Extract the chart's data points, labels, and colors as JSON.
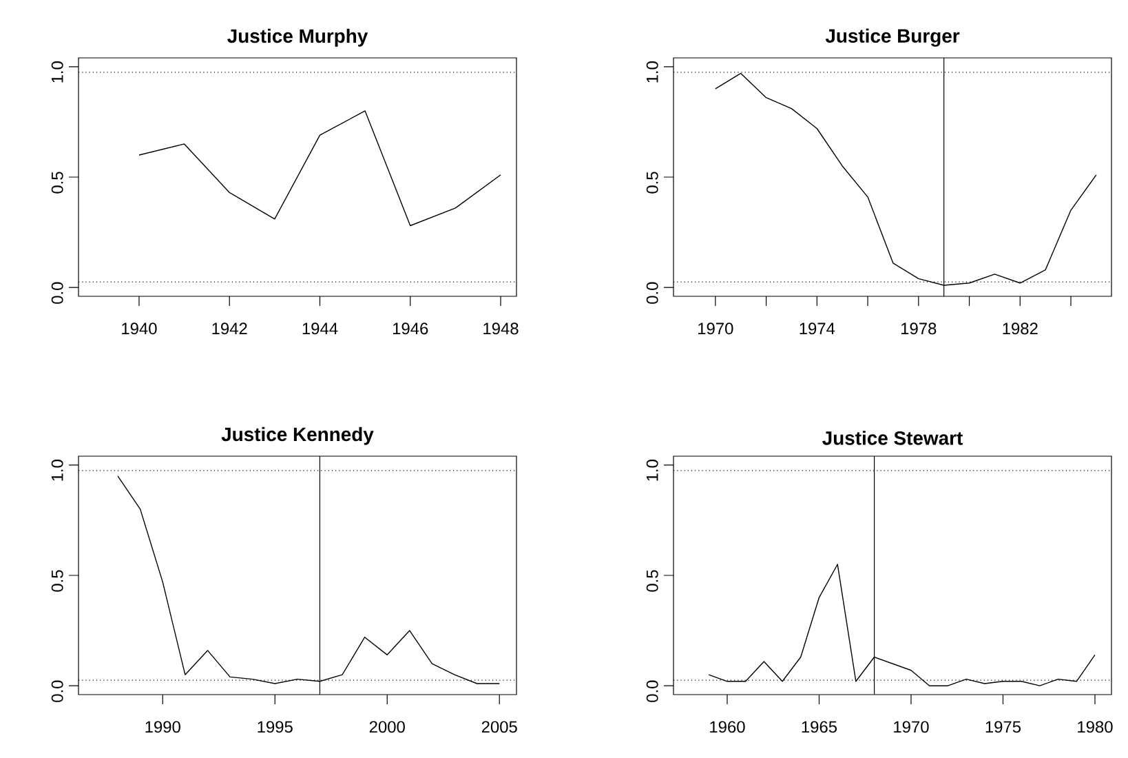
{
  "chart_data": [
    {
      "type": "line",
      "title": "Justice Murphy",
      "color": "#000000",
      "x": [
        1940,
        1941,
        1942,
        1943,
        1944,
        1945,
        1946,
        1947,
        1948
      ],
      "values": [
        0.6,
        0.65,
        0.43,
        0.31,
        0.69,
        0.8,
        0.28,
        0.36,
        0.51
      ],
      "xlim": [
        1938.66,
        1948.35
      ],
      "ylim": [
        -0.04,
        1.04
      ],
      "xticks": [
        1940,
        1942,
        1944,
        1946,
        1948
      ],
      "yticks": [
        {
          "value": 0,
          "label": "0.0"
        },
        {
          "value": 0.5,
          "label": "0.5"
        },
        {
          "value": 1,
          "label": "1.0"
        }
      ],
      "ref_lines": [
        {
          "axis": "y",
          "value": 0.025,
          "line_style": "dotted"
        },
        {
          "axis": "y",
          "value": 0.975,
          "line_style": "dotted"
        }
      ]
    },
    {
      "type": "line",
      "title": "Justice Burger",
      "color": "#000000",
      "x": [
        1970,
        1971,
        1972,
        1973,
        1974,
        1975,
        1976,
        1977,
        1978,
        1979,
        1980,
        1981,
        1982,
        1983,
        1984,
        1985
      ],
      "values": [
        0.9,
        0.97,
        0.86,
        0.81,
        0.72,
        0.55,
        0.41,
        0.11,
        0.04,
        0.01,
        0.02,
        0.06,
        0.02,
        0.08,
        0.35,
        0.51
      ],
      "xlim": [
        1968.35,
        1985.6
      ],
      "ylim": [
        -0.04,
        1.04
      ],
      "xticks": [
        1970,
        {
          "value": 1972,
          "label": null
        },
        1974,
        {
          "value": 1976,
          "label": null
        },
        1978,
        {
          "value": 1980,
          "label": null
        },
        1982,
        {
          "value": 1984,
          "label": null
        }
      ],
      "yticks": [
        {
          "value": 0,
          "label": "0.0"
        },
        {
          "value": 0.5,
          "label": "0.5"
        },
        {
          "value": 1,
          "label": "1.0"
        }
      ],
      "ref_lines": [
        {
          "axis": "y",
          "value": 0.025,
          "line_style": "dotted"
        },
        {
          "axis": "y",
          "value": 0.975,
          "line_style": "dotted"
        },
        {
          "axis": "x",
          "value": 1979,
          "line_style": "solid"
        }
      ]
    },
    {
      "type": "line",
      "title": "Justice Kennedy",
      "color": "#000000",
      "x": [
        1988,
        1989,
        1990,
        1991,
        1992,
        1993,
        1994,
        1995,
        1996,
        1997,
        1998,
        1999,
        2000,
        2001,
        2002,
        2003,
        2004,
        2005
      ],
      "values": [
        0.95,
        0.8,
        0.47,
        0.05,
        0.16,
        0.04,
        0.03,
        0.01,
        0.03,
        0.02,
        0.05,
        0.22,
        0.14,
        0.25,
        0.1,
        0.05,
        0.01,
        0.01
      ],
      "xlim": [
        1986.25,
        2005.76
      ],
      "ylim": [
        -0.04,
        1.04
      ],
      "xticks": [
        1990,
        1995,
        2000,
        2005
      ],
      "yticks": [
        {
          "value": 0,
          "label": "0.0"
        },
        {
          "value": 0.5,
          "label": "0.5"
        },
        {
          "value": 1,
          "label": "1.0"
        }
      ],
      "ref_lines": [
        {
          "axis": "y",
          "value": 0.025,
          "line_style": "dotted"
        },
        {
          "axis": "y",
          "value": 0.975,
          "line_style": "dotted"
        },
        {
          "axis": "x",
          "value": 1997,
          "line_style": "solid"
        }
      ]
    },
    {
      "type": "line",
      "title": "Justice Stewart",
      "color": "#000000",
      "x": [
        1959,
        1960,
        1961,
        1962,
        1963,
        1964,
        1965,
        1966,
        1967,
        1968,
        1969,
        1970,
        1971,
        1972,
        1973,
        1974,
        1975,
        1976,
        1977,
        1978,
        1979,
        1980
      ],
      "values": [
        0.05,
        0.02,
        0.02,
        0.11,
        0.02,
        0.13,
        0.4,
        0.55,
        0.02,
        0.13,
        0.1,
        0.07,
        0.0,
        0.0,
        0.03,
        0.01,
        0.02,
        0.02,
        0.0,
        0.03,
        0.02,
        0.14
      ],
      "xlim": [
        1957.08,
        1980.9
      ],
      "ylim": [
        -0.04,
        1.04
      ],
      "xticks": [
        1960,
        1965,
        1970,
        1975,
        1980
      ],
      "yticks": [
        {
          "value": 0,
          "label": "0.0"
        },
        {
          "value": 0.5,
          "label": "0.5"
        },
        {
          "value": 1,
          "label": "1.0"
        }
      ],
      "ref_lines": [
        {
          "axis": "y",
          "value": 0.025,
          "line_style": "dotted"
        },
        {
          "axis": "y",
          "value": 0.975,
          "line_style": "dotted"
        },
        {
          "axis": "x",
          "value": 1968,
          "line_style": "solid"
        }
      ]
    }
  ]
}
